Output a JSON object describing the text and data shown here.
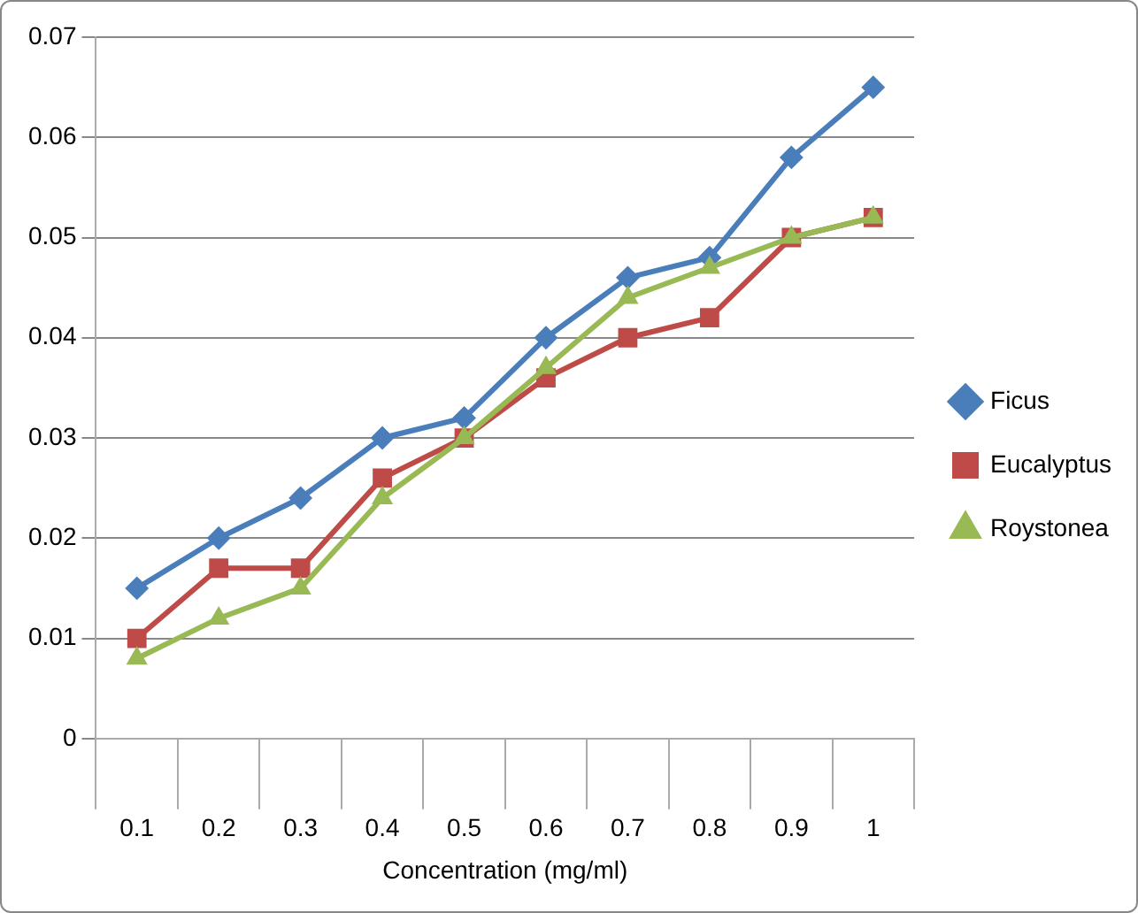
{
  "chart_data": {
    "type": "line",
    "xlabel": "Concentration (mg/ml)",
    "categories": [
      "0.1",
      "0.2",
      "0.3",
      "0.4",
      "0.5",
      "0.6",
      "0.7",
      "0.8",
      "0.9",
      "1"
    ],
    "series": [
      {
        "name": "Ficus",
        "color": "#4a7ebb",
        "marker": "diamond",
        "values": [
          0.015,
          0.02,
          0.024,
          0.03,
          0.032,
          0.04,
          0.046,
          0.048,
          0.058,
          0.065
        ]
      },
      {
        "name": "Eucalyptus",
        "color": "#be4b48",
        "marker": "square",
        "values": [
          0.01,
          0.017,
          0.017,
          0.026,
          0.03,
          0.036,
          0.04,
          0.042,
          0.05,
          0.052
        ]
      },
      {
        "name": "Roystonea",
        "color": "#98b954",
        "marker": "triangle",
        "values": [
          0.008,
          0.012,
          0.015,
          0.024,
          0.03,
          0.037,
          0.044,
          0.047,
          0.05,
          0.052
        ]
      }
    ],
    "ylim": [
      0,
      0.07
    ],
    "yticks": [
      0,
      0.01,
      0.02,
      0.03,
      0.04,
      0.05,
      0.06,
      0.07
    ],
    "grid": "y",
    "legend": "right",
    "line_style": "solid"
  }
}
